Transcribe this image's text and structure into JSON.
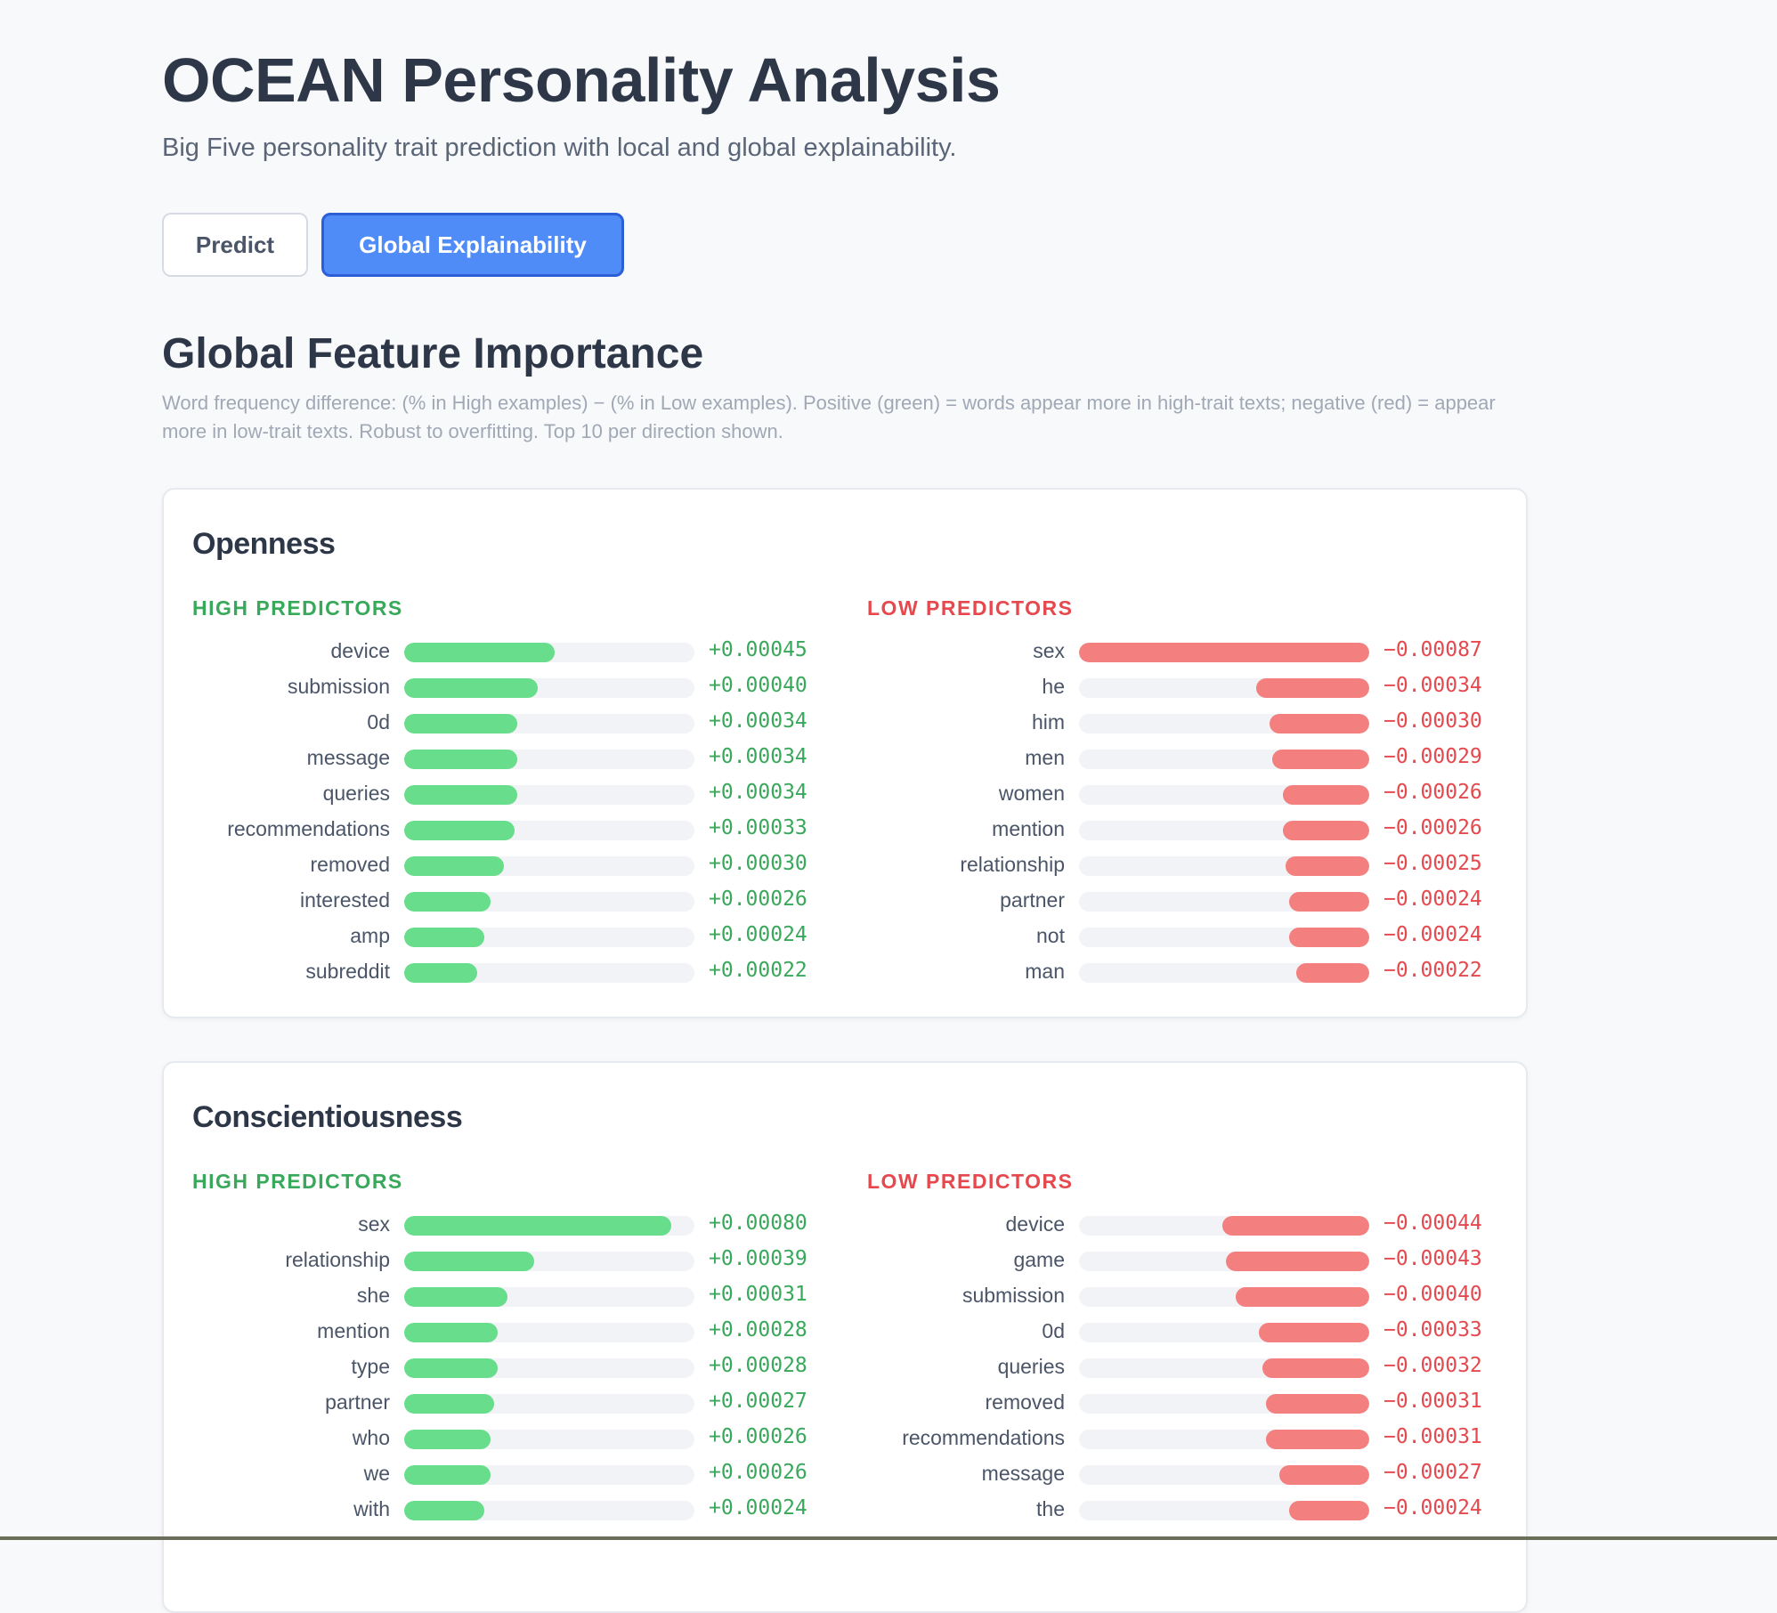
{
  "header": {
    "title": "OCEAN Personality Analysis",
    "subtitle": "Big Five personality trait prediction with local and global explainability."
  },
  "tabs": [
    {
      "label": "Predict",
      "active": false
    },
    {
      "label": "Global Explainability",
      "active": true
    }
  ],
  "section": {
    "title": "Global Feature Importance",
    "description": "Word frequency difference: (% in High examples) − (% in Low examples). Positive (green) = words appear more in high-trait texts; negative (red) = appear more in low-trait texts. Robust to overfitting. Top 10 per direction shown."
  },
  "colors": {
    "accent": "#4f8cf7",
    "positive": "#68dd8b",
    "negative": "#f37f7f",
    "positive_text": "#38a85a",
    "negative_text": "#e5484d"
  },
  "cards": [
    {
      "trait": "Openness",
      "high_label": "HIGH PREDICTORS",
      "low_label": "LOW PREDICTORS",
      "high": [
        {
          "word": "device",
          "value": "+0.00045",
          "num": 0.00045
        },
        {
          "word": "submission",
          "value": "+0.00040",
          "num": 0.0004
        },
        {
          "word": "0d",
          "value": "+0.00034",
          "num": 0.00034
        },
        {
          "word": "message",
          "value": "+0.00034",
          "num": 0.00034
        },
        {
          "word": "queries",
          "value": "+0.00034",
          "num": 0.00034
        },
        {
          "word": "recommendations",
          "value": "+0.00033",
          "num": 0.00033
        },
        {
          "word": "removed",
          "value": "+0.00030",
          "num": 0.0003
        },
        {
          "word": "interested",
          "value": "+0.00026",
          "num": 0.00026
        },
        {
          "word": "amp",
          "value": "+0.00024",
          "num": 0.00024
        },
        {
          "word": "subreddit",
          "value": "+0.00022",
          "num": 0.00022
        }
      ],
      "low": [
        {
          "word": "sex",
          "value": "−0.00087",
          "num": 0.00087
        },
        {
          "word": "he",
          "value": "−0.00034",
          "num": 0.00034
        },
        {
          "word": "him",
          "value": "−0.00030",
          "num": 0.0003
        },
        {
          "word": "men",
          "value": "−0.00029",
          "num": 0.00029
        },
        {
          "word": "women",
          "value": "−0.00026",
          "num": 0.00026
        },
        {
          "word": "mention",
          "value": "−0.00026",
          "num": 0.00026
        },
        {
          "word": "relationship",
          "value": "−0.00025",
          "num": 0.00025
        },
        {
          "word": "partner",
          "value": "−0.00024",
          "num": 0.00024
        },
        {
          "word": "not",
          "value": "−0.00024",
          "num": 0.00024
        },
        {
          "word": "man",
          "value": "−0.00022",
          "num": 0.00022
        }
      ]
    },
    {
      "trait": "Conscientiousness",
      "high_label": "HIGH PREDICTORS",
      "low_label": "LOW PREDICTORS",
      "high": [
        {
          "word": "sex",
          "value": "+0.00080",
          "num": 0.0008
        },
        {
          "word": "relationship",
          "value": "+0.00039",
          "num": 0.00039
        },
        {
          "word": "she",
          "value": "+0.00031",
          "num": 0.00031
        },
        {
          "word": "mention",
          "value": "+0.00028",
          "num": 0.00028
        },
        {
          "word": "type",
          "value": "+0.00028",
          "num": 0.00028
        },
        {
          "word": "partner",
          "value": "+0.00027",
          "num": 0.00027
        },
        {
          "word": "who",
          "value": "+0.00026",
          "num": 0.00026
        },
        {
          "word": "we",
          "value": "+0.00026",
          "num": 0.00026
        },
        {
          "word": "with",
          "value": "+0.00024",
          "num": 0.00024
        }
      ],
      "low": [
        {
          "word": "device",
          "value": "−0.00044",
          "num": 0.00044
        },
        {
          "word": "game",
          "value": "−0.00043",
          "num": 0.00043
        },
        {
          "word": "submission",
          "value": "−0.00040",
          "num": 0.0004
        },
        {
          "word": "0d",
          "value": "−0.00033",
          "num": 0.00033
        },
        {
          "word": "queries",
          "value": "−0.00032",
          "num": 0.00032
        },
        {
          "word": "removed",
          "value": "−0.00031",
          "num": 0.00031
        },
        {
          "word": "recommendations",
          "value": "−0.00031",
          "num": 0.00031
        },
        {
          "word": "message",
          "value": "−0.00027",
          "num": 0.00027
        },
        {
          "word": "the",
          "value": "−0.00024",
          "num": 0.00024
        }
      ]
    }
  ]
}
